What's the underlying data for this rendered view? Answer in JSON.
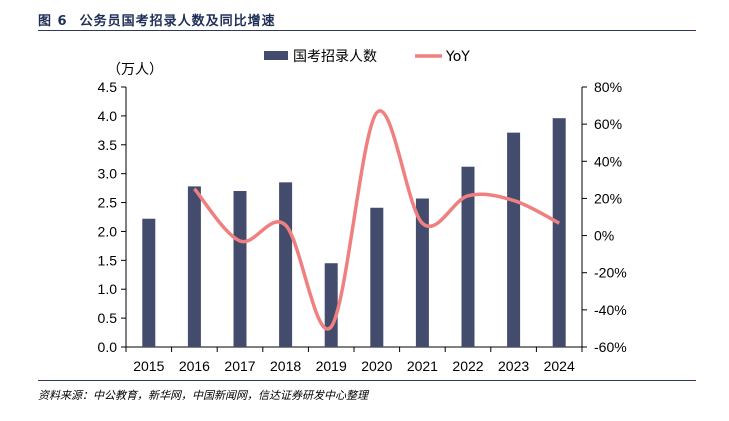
{
  "figure": {
    "number": "图 6",
    "title": "公务员国考招录人数及同比增速",
    "source": "资料来源：中公教育，新华网，中国新闻网，信达证券研发中心整理"
  },
  "chart_data": {
    "type": "bar",
    "categories": [
      "2015",
      "2016",
      "2017",
      "2018",
      "2019",
      "2020",
      "2021",
      "2022",
      "2023",
      "2024"
    ],
    "series": [
      {
        "name": "国考招录人数",
        "type": "bar",
        "axis": "left",
        "color": "#444c6e",
        "values": [
          2.22,
          2.78,
          2.7,
          2.85,
          1.45,
          2.41,
          2.57,
          3.12,
          3.71,
          3.96
        ]
      },
      {
        "name": "YoY",
        "type": "line",
        "axis": "right",
        "color": "#f08080",
        "values": [
          null,
          25.2,
          -2.9,
          5.6,
          -49.1,
          66.2,
          6.6,
          21.4,
          18.9,
          6.7
        ]
      }
    ],
    "ylabel": "（万人）",
    "ylim": [
      0,
      4.5
    ],
    "yticks": [
      "0.0",
      "0.5",
      "1.0",
      "1.5",
      "2.0",
      "2.5",
      "3.0",
      "3.5",
      "4.0",
      "4.5"
    ],
    "y2lim": [
      -60,
      80
    ],
    "y2ticks": [
      "-60%",
      "-40%",
      "-20%",
      "0%",
      "20%",
      "40%",
      "60%",
      "80%"
    ],
    "legend": "top-center",
    "grid": false
  }
}
